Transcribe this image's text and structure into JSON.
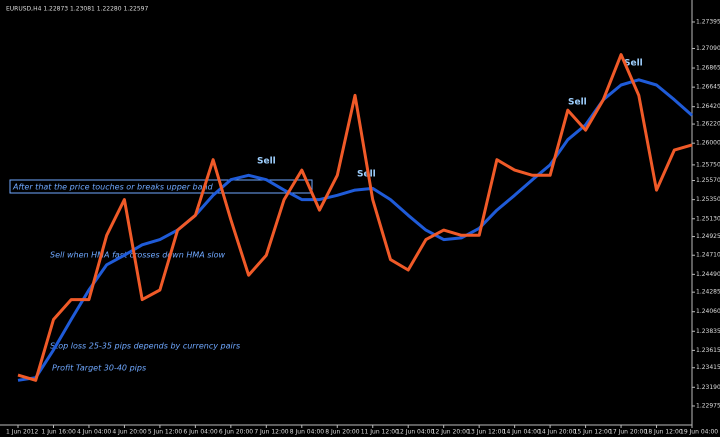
{
  "chart_data": {
    "type": "line",
    "title": "EURUSD,H4 1.22873 1.23081 1.22280 1.22597",
    "annotations": [
      "After that the price touches or breaks upper band",
      "Sell when HMA fast crosses down HMA slow",
      "Stop loss 25-35 pips depends by currency pairs",
      "Profit Target 30-40 pips",
      "Sell",
      "Sell",
      "Sell",
      "Sell"
    ],
    "categories": [
      "1 Jun 2012",
      null,
      "1 Jun 16:00",
      null,
      "4 Jun 04:00",
      null,
      "4 Jun 20:00",
      null,
      "5 Jun 12:00",
      null,
      "6 Jun 04:00",
      null,
      "6 Jun 20:00",
      null,
      "7 Jun 12:00",
      null,
      "8 Jun 04:00",
      null,
      "8 Jun 20:00",
      null,
      "11 Jun 12:00",
      null,
      "12 Jun 04:00",
      null,
      "12 Jun 20:00",
      null,
      "13 Jun 12:00",
      null,
      "14 Jun 04:00",
      null,
      "14 Jun 20:00",
      null,
      "15 Jun 12:00",
      null,
      "17 Jun 20:00",
      null,
      "18 Jun 12:00",
      null,
      "19 Jun 04:00"
    ],
    "series": [
      {
        "color": "#f05a28",
        "values": [
          1.2333,
          1.2327,
          1.2397,
          1.242,
          1.242,
          1.2494,
          1.2535,
          1.242,
          1.2431,
          1.25,
          1.2517,
          1.2581,
          1.2512,
          1.2448,
          1.2471,
          1.2535,
          1.2569,
          1.2523,
          1.2563,
          1.2655,
          1.2535,
          1.2466,
          1.2454,
          1.2489,
          1.25,
          1.2494,
          1.2494,
          1.2581,
          1.2569,
          1.2563,
          1.2563,
          1.2638,
          1.2615,
          1.265,
          1.2702,
          1.2655,
          1.2546,
          1.2592,
          1.2598
        ]
      },
      {
        "color": "#1f5bd8",
        "values": [
          1.2327,
          1.233,
          1.2362,
          1.2397,
          1.2431,
          1.246,
          1.2471,
          1.2483,
          1.2489,
          1.25,
          1.2517,
          1.254,
          1.2558,
          1.2563,
          1.2558,
          1.2546,
          1.2535,
          1.2535,
          1.254,
          1.2546,
          1.2548,
          1.2535,
          1.2517,
          1.25,
          1.2489,
          1.2491,
          1.2502,
          1.2523,
          1.254,
          1.2558,
          1.2575,
          1.2604,
          1.2621,
          1.265,
          1.2667,
          1.2673,
          1.2667,
          1.265,
          1.2632
        ]
      }
    ],
    "ylim": [
      1.22756,
      1.27602
    ],
    "yticks": [
      {
        "value": 1.27395,
        "label": "1.27395"
      },
      {
        "value": 1.2709,
        "label": "1.27090"
      },
      {
        "value": 1.26865,
        "label": "1.26865"
      },
      {
        "value": 1.26645,
        "label": "1.26645"
      },
      {
        "value": 1.2642,
        "label": "1.26420"
      },
      {
        "value": 1.2622,
        "label": "1.26220"
      },
      {
        "value": 1.26,
        "label": "1.26000"
      },
      {
        "value": 1.2575,
        "label": "1.25750"
      },
      {
        "value": 1.2557,
        "label": "1.25570"
      },
      {
        "value": 1.2535,
        "label": "1.25350"
      },
      {
        "value": 1.2513,
        "label": "1.25130"
      },
      {
        "value": 1.24925,
        "label": "1.24925"
      },
      {
        "value": 1.2471,
        "label": "1.24710"
      },
      {
        "value": 1.2449,
        "label": "1.24490"
      },
      {
        "value": 1.24285,
        "label": "1.24285"
      },
      {
        "value": 1.2406,
        "label": "1.24060"
      },
      {
        "value": 1.23835,
        "label": "1.23835"
      },
      {
        "value": 1.23615,
        "label": "1.23615"
      },
      {
        "value": 1.23415,
        "label": "1.23415"
      },
      {
        "value": 1.2319,
        "label": "1.23190"
      },
      {
        "value": 1.22975,
        "label": "1.22975"
      }
    ]
  }
}
